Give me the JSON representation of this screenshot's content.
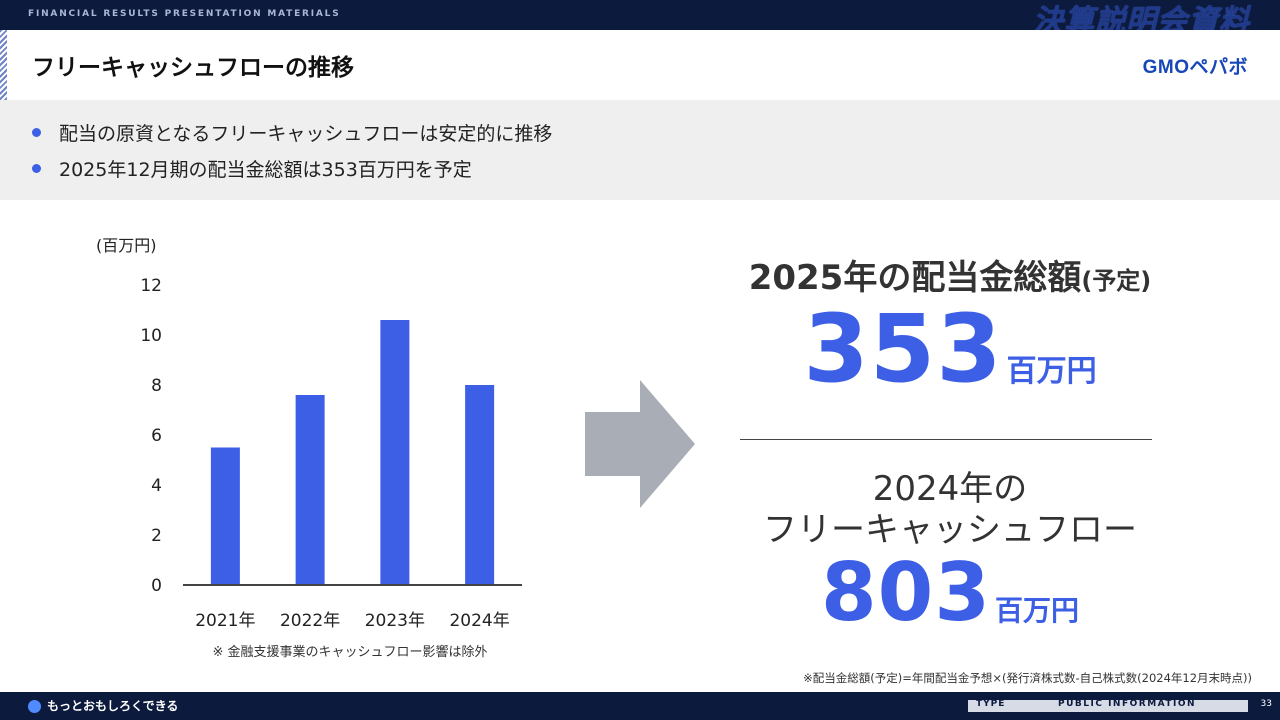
{
  "header": {
    "category_label": "FINANCIAL RESULTS PRESENTATION MATERIALS",
    "deck_title": "決算説明会資料"
  },
  "slide": {
    "title": "フリーキャッシュフローの推移",
    "logo_text": "GMOペパボ",
    "bullets": [
      "配当の原資となるフリーキャッシュフローは安定的に推移",
      "2025年12月期の配当金総額は353百万円を予定"
    ]
  },
  "chart_data": {
    "type": "bar",
    "unit_label": "(百万円)",
    "categories": [
      "2021年",
      "2022年",
      "2023年",
      "2024年"
    ],
    "values": [
      5.5,
      7.6,
      10.6,
      8.0
    ],
    "ylim": [
      0,
      12
    ],
    "yticks": [
      "0",
      "2",
      "4",
      "6",
      "8",
      "10",
      "12"
    ],
    "color": "#3d5fe6",
    "note": "※ 金融支援事業のキャッシュフロー影響は除外"
  },
  "summary": {
    "dividend_heading": "2025年の配当金総額",
    "dividend_heading_suffix": "(予定)",
    "dividend_value": "353",
    "dividend_unit": "百万円",
    "fcf_heading_line1": "2024年の",
    "fcf_heading_line2": "フリーキャッシュフロー",
    "fcf_value": "803",
    "fcf_unit": "百万円"
  },
  "footnote": "※配当金総額(予定)=年間配当金予想×(発行済株式数-自己株式数(2024年12月末時点))",
  "footer": {
    "slogan": "もっとおもしろくできる",
    "type_label": "TYPE",
    "info_label": "PUBLIC INFORMATION",
    "page": "33"
  },
  "colors": {
    "navy": "#0c1a3e",
    "accent": "#3d5fe6",
    "arrow": "#a9aeb6"
  }
}
